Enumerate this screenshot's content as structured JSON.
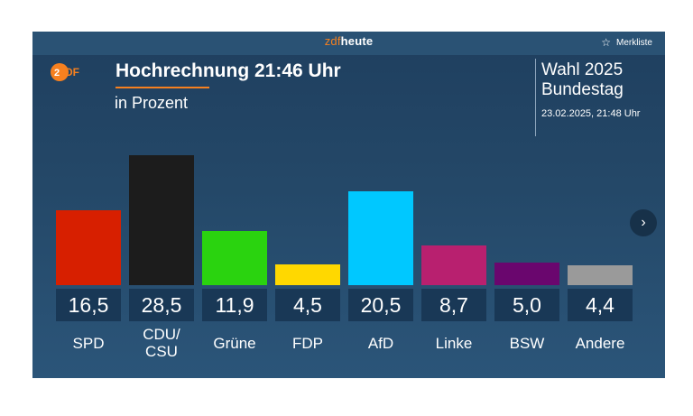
{
  "header": {
    "brand_zdf": "zdf",
    "brand_heute": "heute",
    "merkliste_label": "Merkliste",
    "star_icon": "star-icon"
  },
  "main": {
    "logo": "zdf-logo",
    "title": "Hochrechnung 21:46 Uhr",
    "subtitle": "in Prozent",
    "election_line1": "Wahl 2025",
    "election_line2": "Bundestag",
    "timestamp": "23.02.2025, 21:48 Uhr"
  },
  "colors": {
    "accent": "#f6801f",
    "panel_bg": "#244868",
    "value_box_bg": "#193856"
  },
  "chart_data": {
    "type": "bar",
    "ylabel": "in Prozent",
    "ylim": [
      0,
      28.5
    ],
    "categories": [
      "SPD",
      "CDU/\nCSU",
      "Grüne",
      "FDP",
      "AfD",
      "Linke",
      "BSW",
      "Andere"
    ],
    "values": [
      16.5,
      28.5,
      11.9,
      4.5,
      20.5,
      8.7,
      5.0,
      4.4
    ],
    "value_labels": [
      "16,5",
      "28,5",
      "11,9",
      "4,5",
      "20,5",
      "8,7",
      "5,0",
      "4,4"
    ],
    "colors": [
      "#d71f00",
      "#1c1c1c",
      "#2ad30f",
      "#ffd800",
      "#00c8ff",
      "#b8206f",
      "#6a066e",
      "#9a9a9a"
    ]
  }
}
